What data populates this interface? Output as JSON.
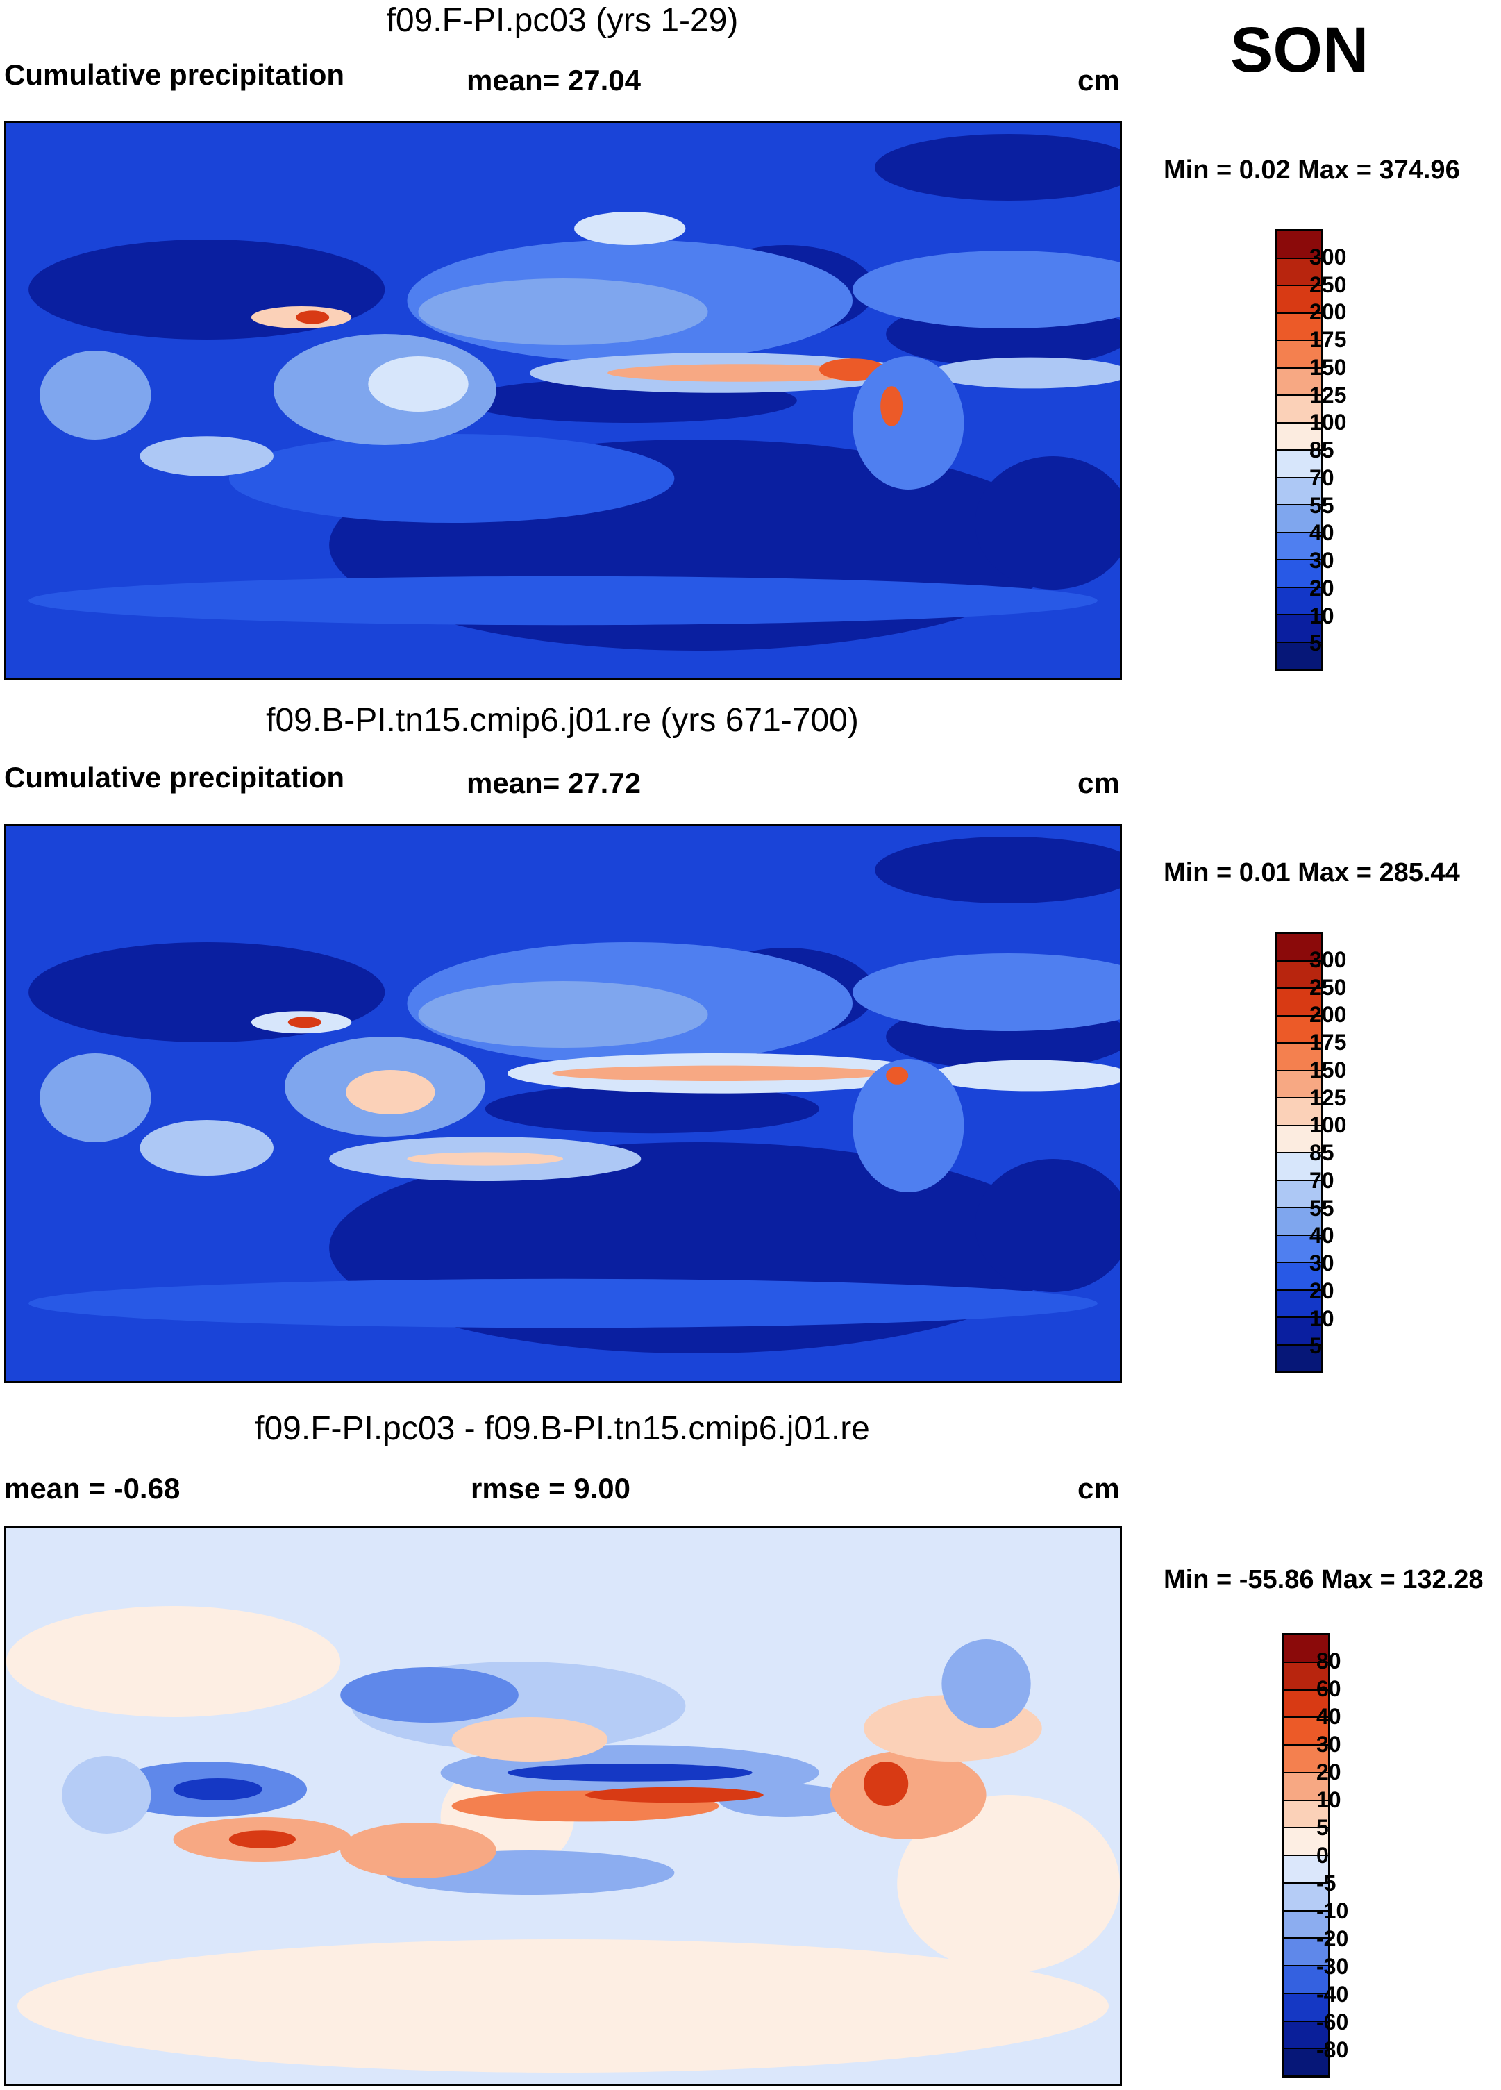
{
  "season": "SON",
  "panels": [
    {
      "title": "f09.F-PI.pc03 (yrs 1-29)",
      "left_label": "Cumulative precipitation",
      "center_label": "mean=  27.04",
      "units": "cm",
      "minmax": "Min =   0.02 Max = 374.96",
      "colorbar": {
        "labels": [
          "300",
          "250",
          "200",
          "175",
          "150",
          "125",
          "100",
          "85",
          "70",
          "55",
          "40",
          "30",
          "20",
          "10",
          "5"
        ],
        "colors": [
          "#8b0a0a",
          "#b8250e",
          "#d83a14",
          "#ec5a28",
          "#f4804f",
          "#f7a883",
          "#fbd1b8",
          "#fcece0",
          "#d7e6fb",
          "#adc8f5",
          "#7fa6ee",
          "#4f7ff0",
          "#2859e6",
          "#1337c8",
          "#0a1fa0",
          "#061778"
        ]
      }
    },
    {
      "title": "f09.B-PI.tn15.cmip6.j01.re (yrs 671-700)",
      "left_label": "Cumulative precipitation",
      "center_label": "mean=  27.72",
      "units": "cm",
      "minmax": "Min =   0.01 Max = 285.44",
      "colorbar": {
        "labels": [
          "300",
          "250",
          "200",
          "175",
          "150",
          "125",
          "100",
          "85",
          "70",
          "55",
          "40",
          "30",
          "20",
          "10",
          "5"
        ],
        "colors": [
          "#8b0a0a",
          "#b8250e",
          "#d83a14",
          "#ec5a28",
          "#f4804f",
          "#f7a883",
          "#fbd1b8",
          "#fcece0",
          "#d7e6fb",
          "#adc8f5",
          "#7fa6ee",
          "#4f7ff0",
          "#2859e6",
          "#1337c8",
          "#0a1fa0",
          "#061778"
        ]
      }
    },
    {
      "title": "f09.F-PI.pc03 - f09.B-PI.tn15.cmip6.j01.re",
      "left_label": "mean =  -0.68",
      "center_label": "rmse =    9.00",
      "units": "cm",
      "minmax": "Min = -55.86 Max = 132.28",
      "colorbar": {
        "labels": [
          "80",
          "60",
          "40",
          "30",
          "20",
          "10",
          "5",
          "0",
          "-5",
          "-10",
          "-20",
          "-30",
          "-40",
          "-60",
          "-80"
        ],
        "colors": [
          "#8b0a0a",
          "#b8250e",
          "#d83a14",
          "#ec5a28",
          "#f4804f",
          "#f7a883",
          "#fbd1b8",
          "#fdeee3",
          "#dbe7fb",
          "#b5ccf6",
          "#8cadf0",
          "#5f88ea",
          "#3461e0",
          "#1538c4",
          "#0a1f9a",
          "#061778"
        ]
      }
    }
  ]
}
